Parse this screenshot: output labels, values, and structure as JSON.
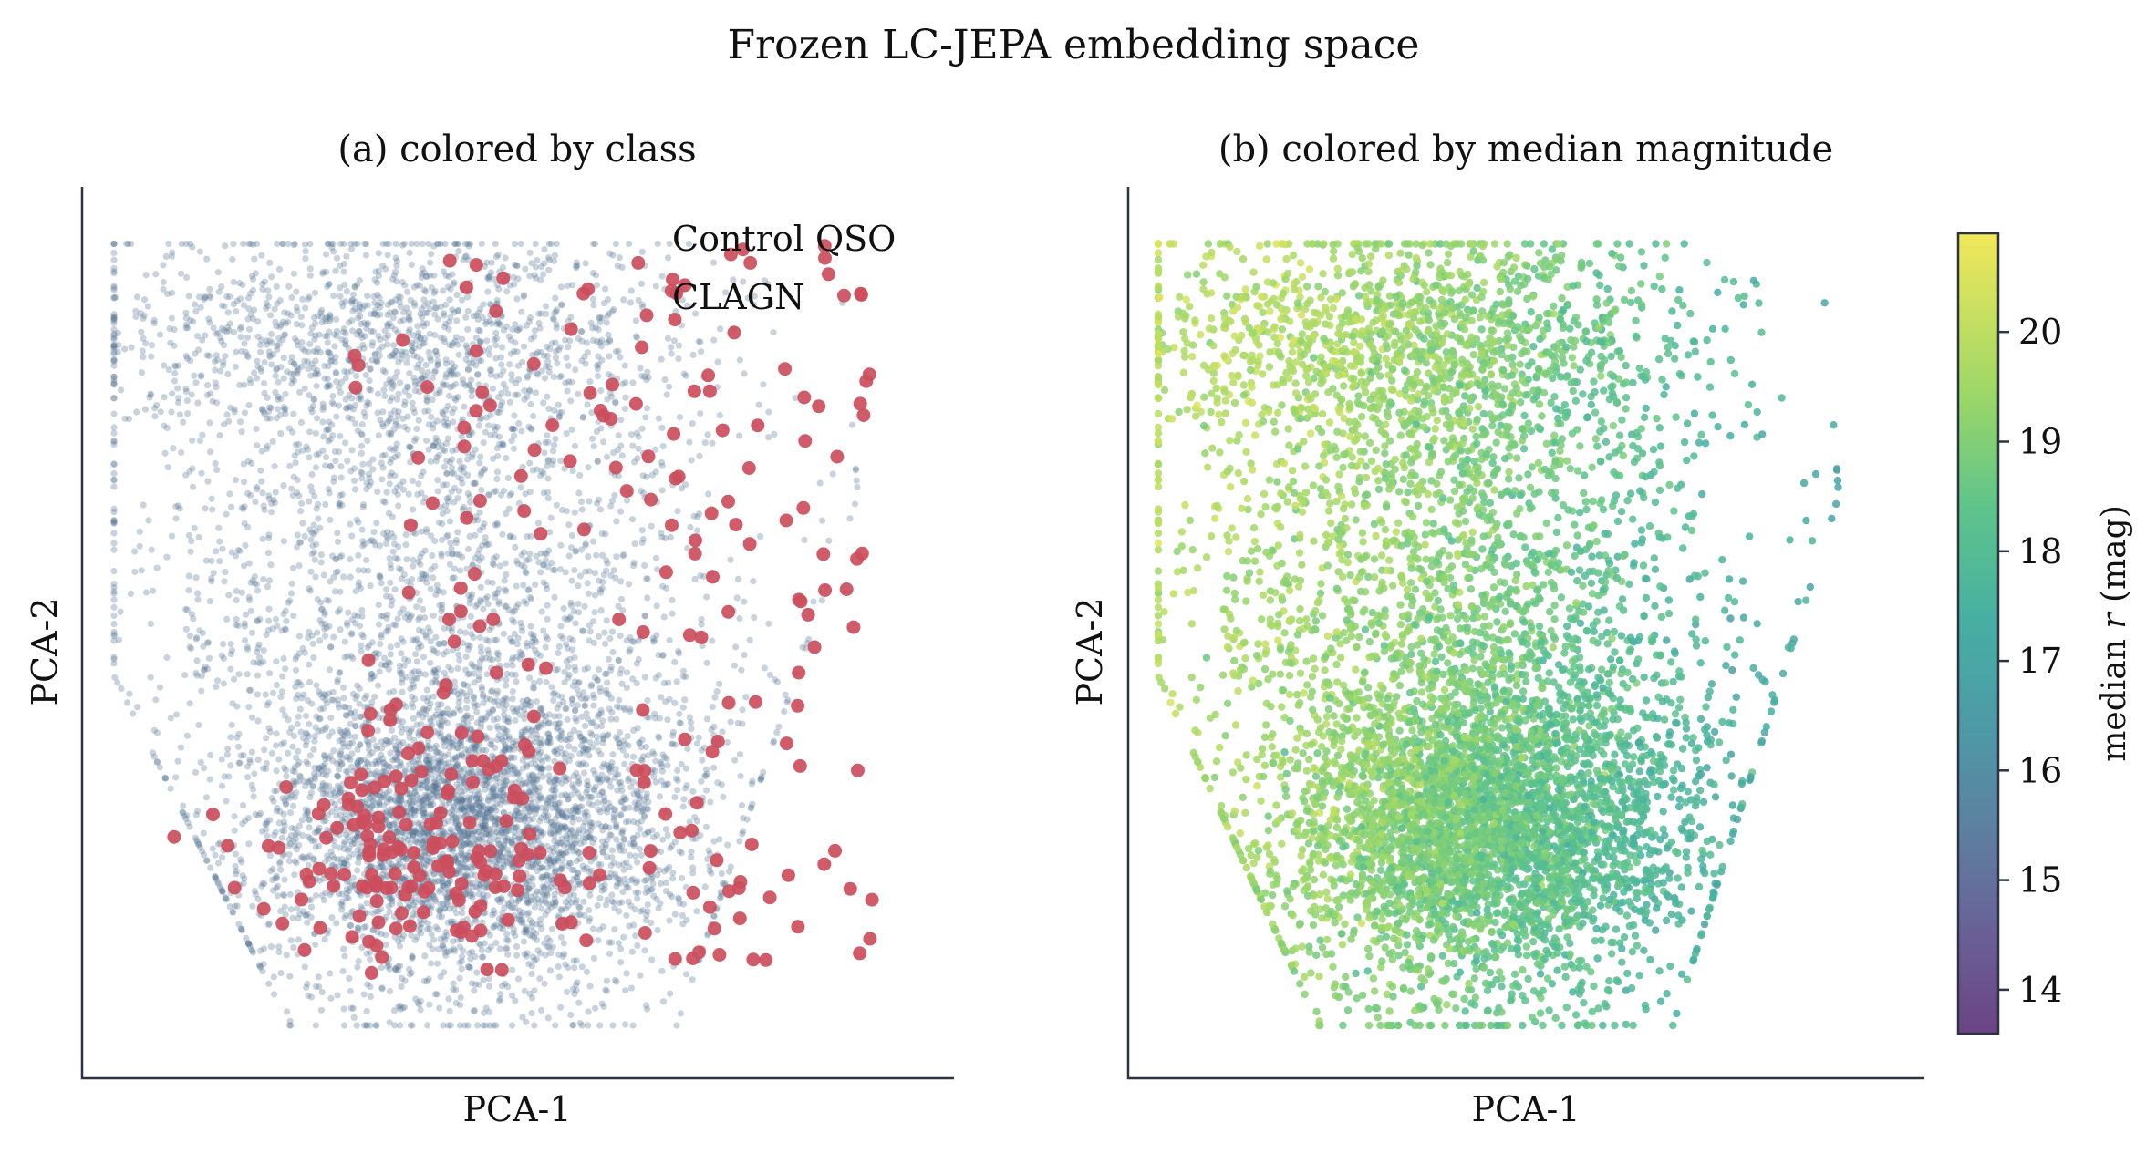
{
  "figure": {
    "title": "Frozen LC-JEPA embedding space"
  },
  "chart_data": [
    {
      "type": "scatter",
      "title": "(a) colored by class",
      "xlabel": "PCA-1",
      "ylabel": "PCA-2",
      "xticks": "none",
      "yticks": "none",
      "legend": {
        "placement": "top-right",
        "entries": [
          {
            "label": "Control QSO",
            "color": "#587694"
          },
          {
            "label": "CLAGN",
            "color": "#cc4d5c"
          }
        ]
      },
      "series": [
        {
          "name": "Control QSO",
          "color": "#587694",
          "approx_count": 7000,
          "note_region": "dense cluster near lower-center"
        },
        {
          "name": "CLAGN",
          "color": "#cc4d5c",
          "approx_count": 320
        }
      ]
    },
    {
      "type": "scatter",
      "title": "(b) colored by median magnitude",
      "xlabel": "PCA-1",
      "ylabel": "PCA-2",
      "xticks": "none",
      "yticks": "none",
      "colorbar": {
        "label": "median r (mag)",
        "label_prefix": "median ",
        "label_var": "r",
        "label_suffix": " (mag)",
        "colormap": "viridis",
        "range": [
          13.6,
          20.9
        ],
        "ticks": [
          14,
          15,
          16,
          17,
          18,
          19,
          20
        ]
      }
    }
  ]
}
